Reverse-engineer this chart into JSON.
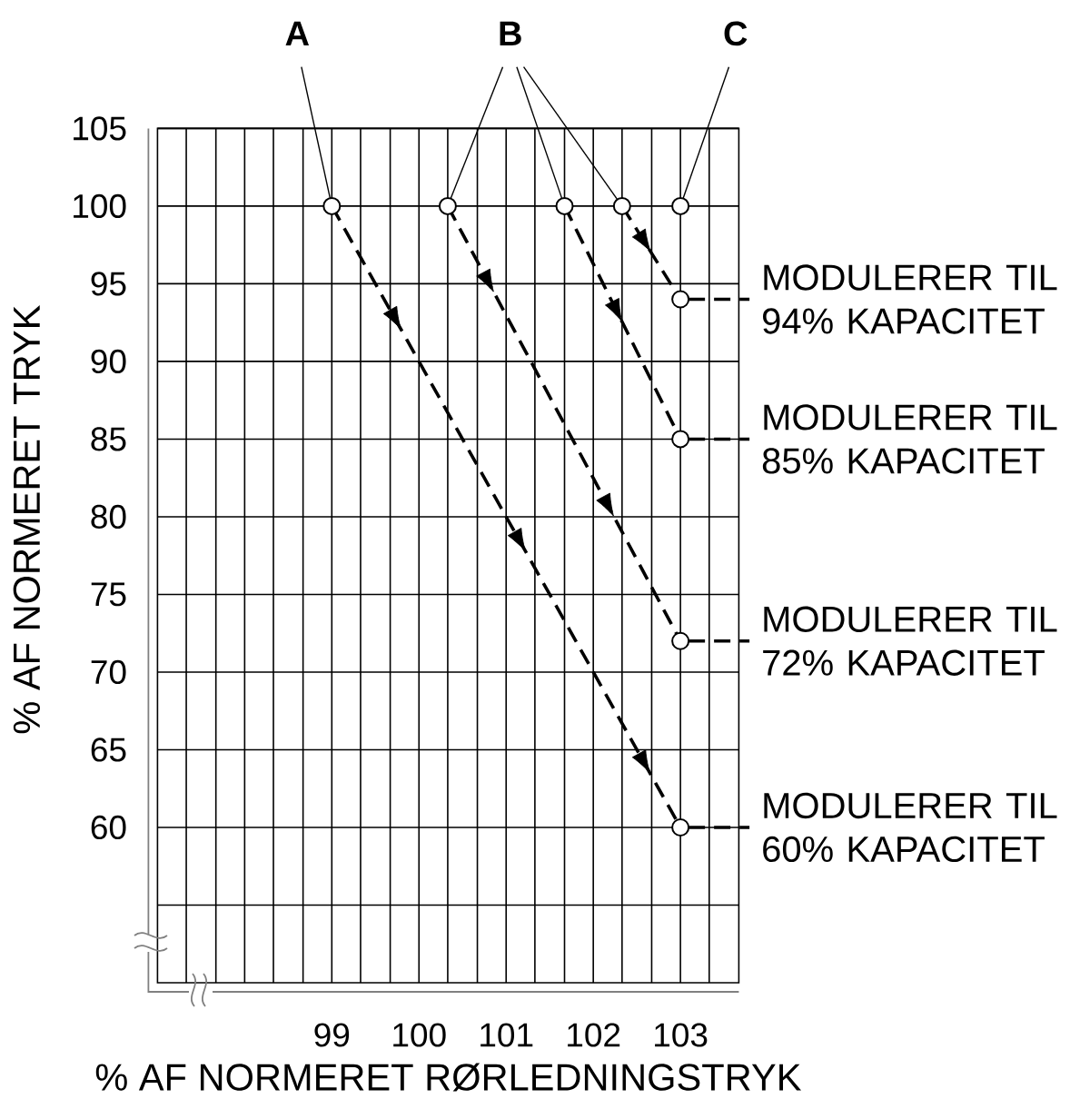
{
  "chart_data": {
    "type": "line",
    "xlabel": "% AF NORMERET RØRLEDNINGSTRYK",
    "ylabel": "% AF NORMERET TRYK",
    "xlim": [
      97,
      103.67
    ],
    "ylim": [
      50,
      105
    ],
    "xticks": [
      {
        "value": 97.33,
        "label": null
      },
      {
        "value": 97.67,
        "label": null
      },
      {
        "value": 98,
        "label": null
      },
      {
        "value": 98.33,
        "label": null
      },
      {
        "value": 98.67,
        "label": null
      },
      99,
      {
        "value": 99.33,
        "label": null
      },
      {
        "value": 99.67,
        "label": null
      },
      100,
      {
        "value": 100.33,
        "label": null
      },
      {
        "value": 100.67,
        "label": null
      },
      101,
      {
        "value": 101.33,
        "label": null
      },
      {
        "value": 101.67,
        "label": null
      },
      102,
      {
        "value": 102.33,
        "label": null
      },
      {
        "value": 102.67,
        "label": null
      },
      103,
      {
        "value": 103.33,
        "label": null
      }
    ],
    "yticks": [
      {
        "value": 55,
        "label": null
      },
      60,
      65,
      70,
      75,
      80,
      85,
      90,
      95,
      100,
      105
    ],
    "grid": true,
    "marker": "circle",
    "line_style": "dashed",
    "series": [
      {
        "color": "#000000",
        "x": [
          99,
          103
        ],
        "values": [
          100,
          60
        ]
      },
      {
        "color": "#000000",
        "x": [
          100.33,
          103
        ],
        "values": [
          100,
          72
        ]
      },
      {
        "color": "#000000",
        "x": [
          101.67,
          103
        ],
        "values": [
          100,
          85
        ]
      },
      {
        "color": "#000000",
        "x": [
          102.33,
          103
        ],
        "values": [
          100,
          94
        ]
      },
      {
        "type": "scatter",
        "color": "#000000",
        "x": [
          103
        ],
        "values": [
          100
        ]
      }
    ],
    "annotations": [
      {
        "text": "A",
        "x": 99,
        "y": 100
      },
      {
        "text": "B",
        "x": 100.33,
        "y": 100
      },
      {
        "text": "C",
        "x": 103,
        "y": 100
      },
      {
        "text": "MODULERER TIL 94% KAPACITET",
        "x": 103,
        "y": 94
      },
      {
        "text": "MODULERER TIL 85% KAPACITET",
        "x": 103,
        "y": 85
      },
      {
        "text": "MODULERER TIL 72% KAPACITET",
        "x": 103,
        "y": 72
      },
      {
        "text": "MODULERER TIL 60% KAPACITET",
        "x": 103,
        "y": 60
      }
    ]
  }
}
